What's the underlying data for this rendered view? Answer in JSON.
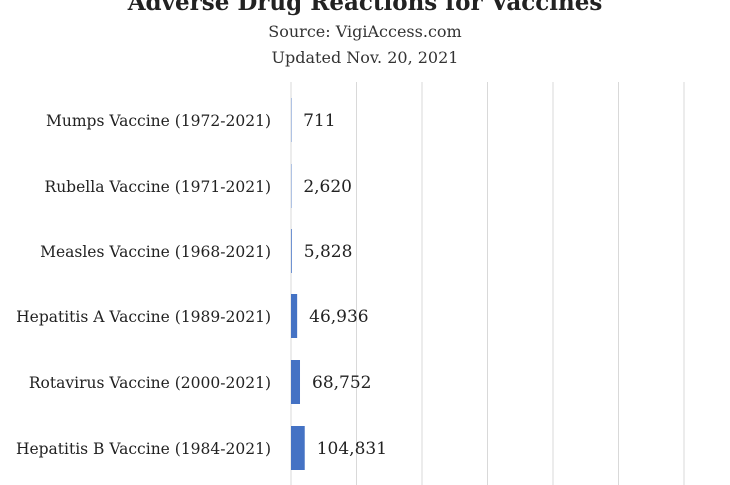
{
  "chart_data": {
    "type": "bar",
    "orientation": "horizontal",
    "title": "Adverse Drug Reactions for Vaccines",
    "subtitle": "Source: VigiAccess.com",
    "updated": "Updated Nov. 20, 2021",
    "categories": [
      "Mumps Vaccine (1972-2021)",
      "Rubella Vaccine (1971-2021)",
      "Measles Vaccine (1968-2021)",
      "Hepatitis A Vaccine (1989-2021)",
      "Rotavirus Vaccine (2000-2021)",
      "Hepatitis B Vaccine (1984-2021)"
    ],
    "values": [
      711,
      2620,
      5828,
      46936,
      68752,
      104831
    ],
    "value_labels": [
      "711",
      "2,620",
      "5,828",
      "46,936",
      "68,752",
      "104,831"
    ],
    "xlim": [
      0,
      3000000
    ],
    "gridlines": "vertical",
    "bar_color": "#4472c4",
    "grid_color": "#d9d9d9"
  }
}
